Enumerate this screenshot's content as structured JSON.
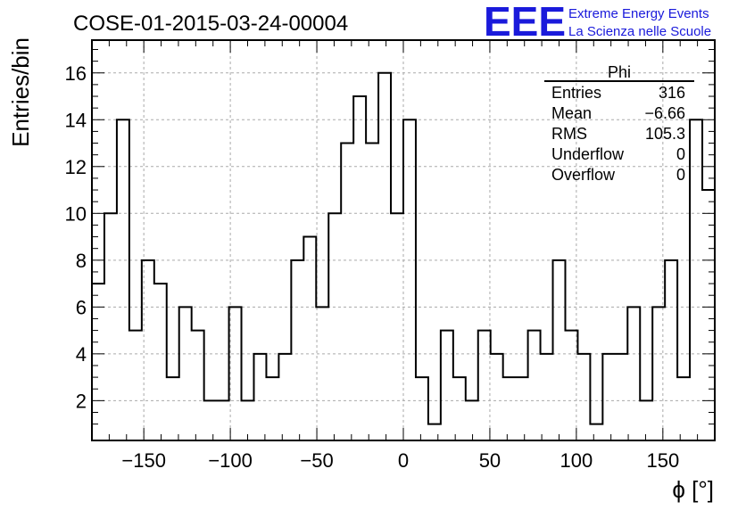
{
  "chart_data": {
    "type": "histogram",
    "title": "COSE-01-2015-03-24-00004",
    "xlabel": "ϕ [°]",
    "ylabel": "Entries/bin",
    "xlim": [
      -180,
      180
    ],
    "ylim": [
      0.3,
      17.4
    ],
    "x_ticks": [
      -150,
      -100,
      -50,
      0,
      50,
      100,
      150
    ],
    "x_tick_labels": [
      "−150",
      "−100",
      "−50",
      "0",
      "50",
      "100",
      "150"
    ],
    "y_ticks": [
      2,
      4,
      6,
      8,
      10,
      12,
      14,
      16
    ],
    "grid": true,
    "bin_width": 7.2,
    "bin_start": -180,
    "values": [
      7,
      10,
      14,
      5,
      8,
      7,
      3,
      6,
      5,
      2,
      2,
      6,
      2,
      4,
      3,
      4,
      8,
      9,
      6,
      10,
      13,
      15,
      13,
      16,
      10,
      14,
      3,
      1,
      5,
      3,
      2,
      5,
      4,
      3,
      3,
      5,
      4,
      8,
      5,
      4,
      1,
      4,
      4,
      6,
      2,
      6,
      8,
      3,
      14,
      11
    ],
    "color": "#000000"
  },
  "stats_box": {
    "title": "Phi",
    "rows": [
      {
        "label": "Entries",
        "value": "316"
      },
      {
        "label": "Mean",
        "value": "−6.66"
      },
      {
        "label": "RMS",
        "value": "105.3"
      },
      {
        "label": "Underflow",
        "value": "0"
      },
      {
        "label": "Overflow",
        "value": "0"
      }
    ]
  },
  "logo": {
    "mark": "EEE",
    "line1": "Extreme Energy Events",
    "line2": "La Scienza nelle Scuole",
    "color": "#1a1adb"
  }
}
